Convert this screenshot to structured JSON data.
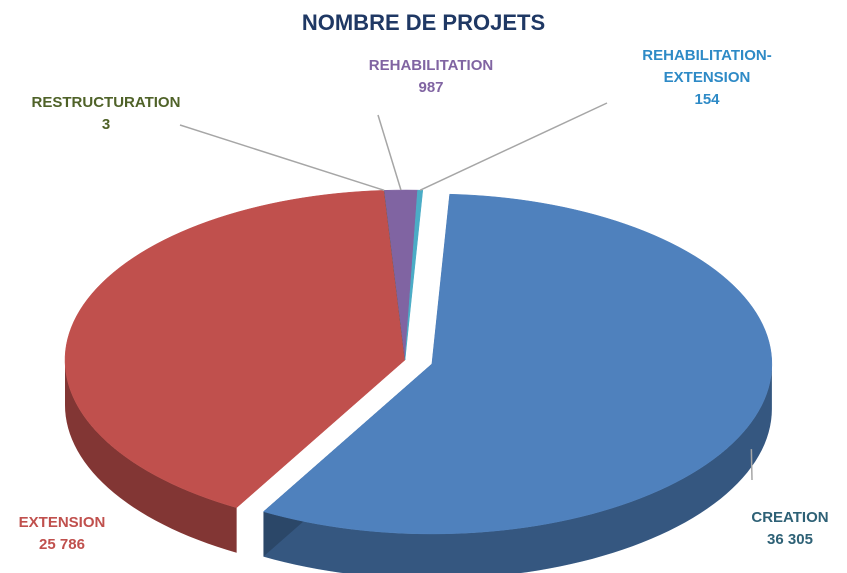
{
  "chart_data": {
    "type": "pie3d",
    "title": "NOMBRE DE PROJETS",
    "categories": [
      "CREATION",
      "EXTENSION",
      "RESTRUCTURATION",
      "REHABILITATION",
      "REHABILITATION-EXTENSION"
    ],
    "values": [
      36305,
      25786,
      3,
      987,
      154
    ],
    "value_labels": [
      "36 305",
      "25 786",
      "3",
      "987",
      "154"
    ],
    "colors": [
      "#4f81bd",
      "#c0504d",
      "#4f6228",
      "#8064a2",
      "#4bacc6"
    ]
  }
}
